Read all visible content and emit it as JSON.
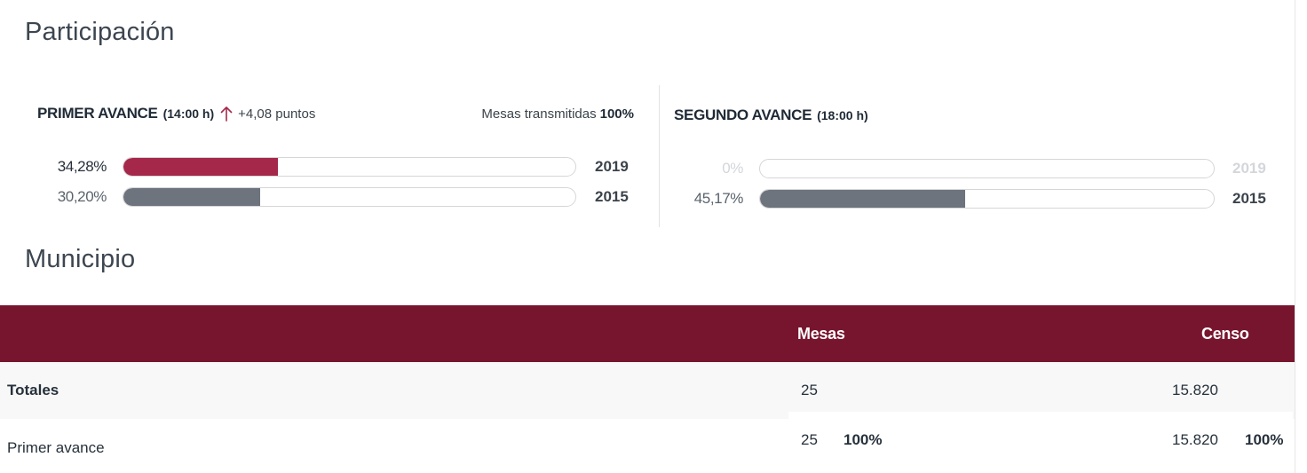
{
  "participacion": {
    "title": "Participación",
    "primer_avance": {
      "label": "PRIMER AVANCE",
      "time": "(14:00 h)",
      "trend": "up",
      "diff": "+4,08 puntos",
      "mesas_label": "Mesas transmitidas",
      "mesas_value": "100%",
      "bars": [
        {
          "pct_text": "34,28%",
          "value": 34.28,
          "year": "2019",
          "color": "#a5274a"
        },
        {
          "pct_text": "30,20%",
          "value": 30.2,
          "year": "2015",
          "color": "#6d747d"
        }
      ]
    },
    "segundo_avance": {
      "label": "SEGUNDO AVANCE",
      "time": "(18:00 h)",
      "bars": [
        {
          "pct_text": "0%",
          "value": 0,
          "year": "2019",
          "color": "#a5274a",
          "faded": true
        },
        {
          "pct_text": "45,17%",
          "value": 45.17,
          "year": "2015",
          "color": "#6d747d",
          "faded": false
        }
      ]
    }
  },
  "municipio": {
    "title": "Municipio",
    "columns": {
      "mesas": "Mesas",
      "censo": "Censo"
    },
    "rows": [
      {
        "label": "Totales",
        "mesas": "25",
        "mesas_pct": "",
        "censo": "15.820",
        "censo_pct": ""
      },
      {
        "label": "Primer avance",
        "mesas": "25",
        "mesas_pct": "100%",
        "censo": "15.820",
        "censo_pct": "100%"
      }
    ]
  },
  "colors": {
    "accent": "#78152e",
    "bar_2019": "#a5274a",
    "bar_2015": "#6d747d"
  }
}
